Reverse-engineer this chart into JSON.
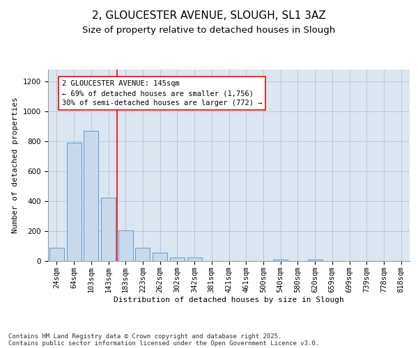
{
  "title_line1": "2, GLOUCESTER AVENUE, SLOUGH, SL1 3AZ",
  "title_line2": "Size of property relative to detached houses in Slough",
  "xlabel": "Distribution of detached houses by size in Slough",
  "ylabel": "Number of detached properties",
  "categories": [
    "24sqm",
    "64sqm",
    "103sqm",
    "143sqm",
    "183sqm",
    "223sqm",
    "262sqm",
    "302sqm",
    "342sqm",
    "381sqm",
    "421sqm",
    "461sqm",
    "500sqm",
    "540sqm",
    "580sqm",
    "620sqm",
    "659sqm",
    "699sqm",
    "739sqm",
    "778sqm",
    "818sqm"
  ],
  "values": [
    90,
    790,
    870,
    425,
    205,
    90,
    55,
    25,
    25,
    0,
    0,
    0,
    0,
    10,
    0,
    10,
    0,
    0,
    0,
    0,
    0
  ],
  "bar_color": "#c9d9ea",
  "bar_edge_color": "#5b9bd5",
  "grid_color": "#b8c8d8",
  "bg_color": "#dce6f0",
  "vline_x": 3.5,
  "vline_color": "red",
  "annotation_title": "2 GLOUCESTER AVENUE: 145sqm",
  "annotation_line1": "← 69% of detached houses are smaller (1,756)",
  "annotation_line2": "30% of semi-detached houses are larger (772) →",
  "annotation_box_color": "white",
  "annotation_box_edge": "red",
  "ylim": [
    0,
    1280
  ],
  "yticks": [
    0,
    200,
    400,
    600,
    800,
    1000,
    1200
  ],
  "footer_line1": "Contains HM Land Registry data © Crown copyright and database right 2025.",
  "footer_line2": "Contains public sector information licensed under the Open Government Licence v3.0.",
  "title_fontsize": 11,
  "subtitle_fontsize": 9.5,
  "axis_label_fontsize": 8,
  "tick_fontsize": 7.5,
  "annotation_fontsize": 7.5,
  "footer_fontsize": 6.5
}
